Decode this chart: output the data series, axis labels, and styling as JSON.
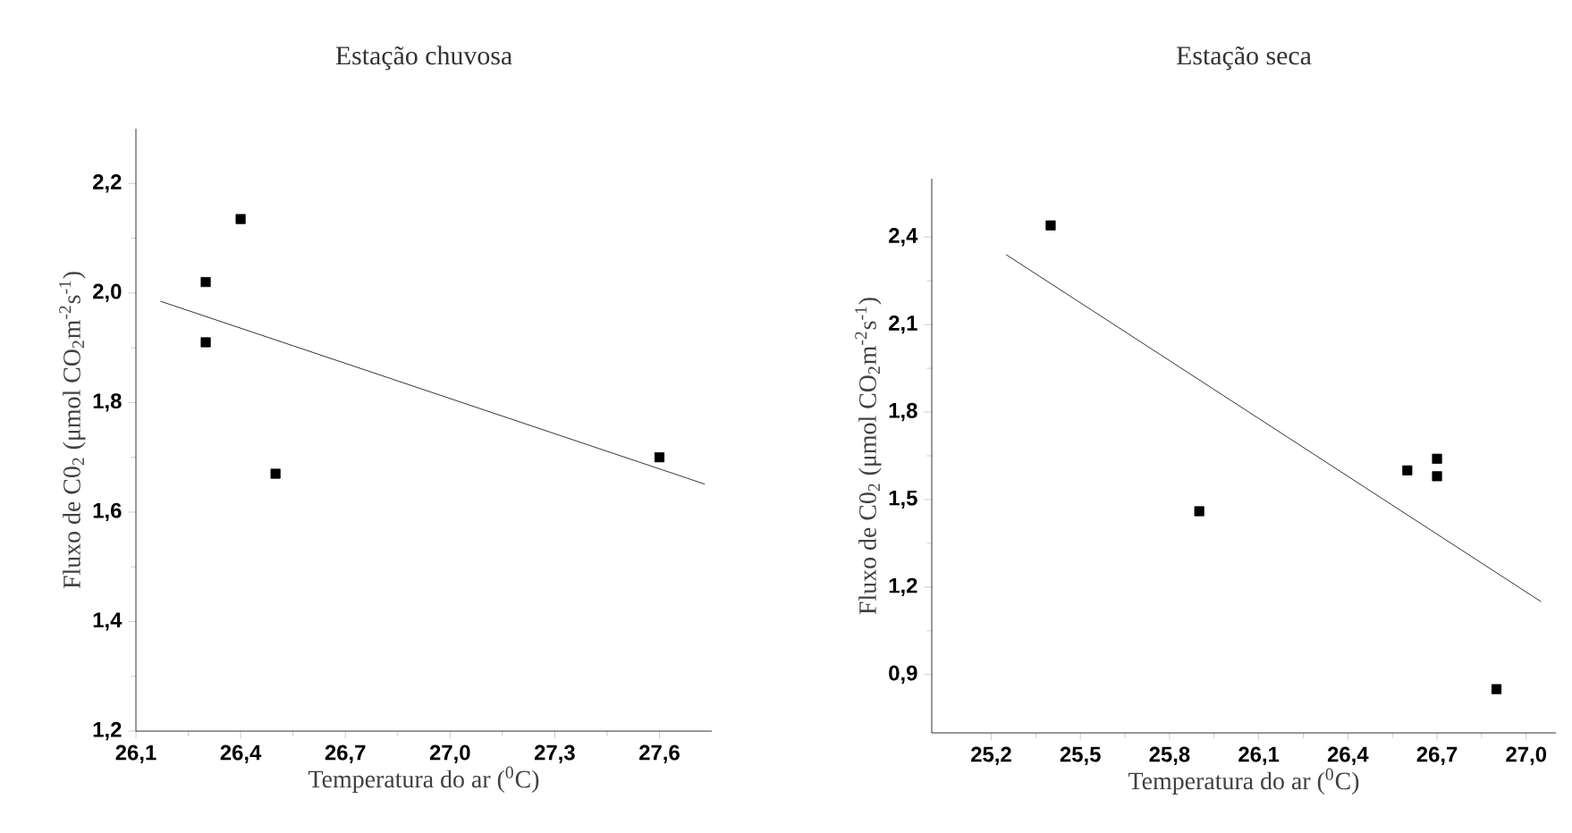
{
  "chart_data": [
    {
      "type": "scatter",
      "title": "Estação chuvosa",
      "xlabel": "Temperatura do ar ($^{0}$C)",
      "ylabel": "Fluxo de C0$_{2}$ (μmol CO$_{2}$m$^{-2}$s$^{-1}$)",
      "xlim": [
        26.1,
        27.75
      ],
      "ylim": [
        1.2,
        2.3
      ],
      "xticks": [
        {
          "value": 26.1,
          "label": "26,1"
        },
        {
          "value": 26.4,
          "label": "26,4"
        },
        {
          "value": 26.7,
          "label": "26,7"
        },
        {
          "value": 27.0,
          "label": "27,0"
        },
        {
          "value": 27.3,
          "label": "27,3"
        },
        {
          "value": 27.6,
          "label": "27,6"
        }
      ],
      "yticks": [
        {
          "value": 1.2,
          "label": "1,2"
        },
        {
          "value": 1.4,
          "label": "1,4"
        },
        {
          "value": 1.6,
          "label": "1,6"
        },
        {
          "value": 1.8,
          "label": "1,8"
        },
        {
          "value": 2.0,
          "label": "2,0"
        },
        {
          "value": 2.2,
          "label": "2,2"
        }
      ],
      "marker": "square",
      "series": [
        {
          "color": "#000000",
          "x": [
            26.3,
            26.3,
            26.4,
            26.5,
            27.6
          ],
          "values": [
            2.02,
            1.91,
            2.135,
            1.67,
            1.7
          ]
        },
        {
          "type": "line",
          "marker": "none",
          "line_style": "solid",
          "color": "#000000",
          "x": [
            26.17,
            27.73
          ],
          "values": [
            1.985,
            1.651
          ]
        }
      ]
    },
    {
      "type": "scatter",
      "title": "Estação seca",
      "xlabel": "Temperatura do ar ($^{0}$C)",
      "ylabel": "Fluxo de C0$_{2}$ (μmol CO$_{2}$m$^{-2}$s$^{-1}$)",
      "xlim": [
        25.0,
        27.1
      ],
      "ylim": [
        0.7,
        2.6
      ],
      "xticks": [
        {
          "value": 25.2,
          "label": "25,2"
        },
        {
          "value": 25.5,
          "label": "25,5"
        },
        {
          "value": 25.8,
          "label": "25,8"
        },
        {
          "value": 26.1,
          "label": "26,1"
        },
        {
          "value": 26.4,
          "label": "26,4"
        },
        {
          "value": 26.7,
          "label": "26,7"
        },
        {
          "value": 27.0,
          "label": "27,0"
        }
      ],
      "yticks": [
        {
          "value": 0.9,
          "label": "0,9"
        },
        {
          "value": 1.2,
          "label": "1,2"
        },
        {
          "value": 1.5,
          "label": "1,5"
        },
        {
          "value": 1.8,
          "label": "1,8"
        },
        {
          "value": 2.1,
          "label": "2,1"
        },
        {
          "value": 2.4,
          "label": "2,4"
        }
      ],
      "marker": "square",
      "series": [
        {
          "color": "#000000",
          "x": [
            25.4,
            25.9,
            26.6,
            26.7,
            26.7,
            26.9
          ],
          "values": [
            2.44,
            1.46,
            1.6,
            1.64,
            1.58,
            0.85
          ]
        },
        {
          "type": "line",
          "marker": "none",
          "line_style": "solid",
          "color": "#000000",
          "x": [
            25.25,
            27.05
          ],
          "values": [
            2.34,
            1.15
          ]
        }
      ]
    }
  ]
}
